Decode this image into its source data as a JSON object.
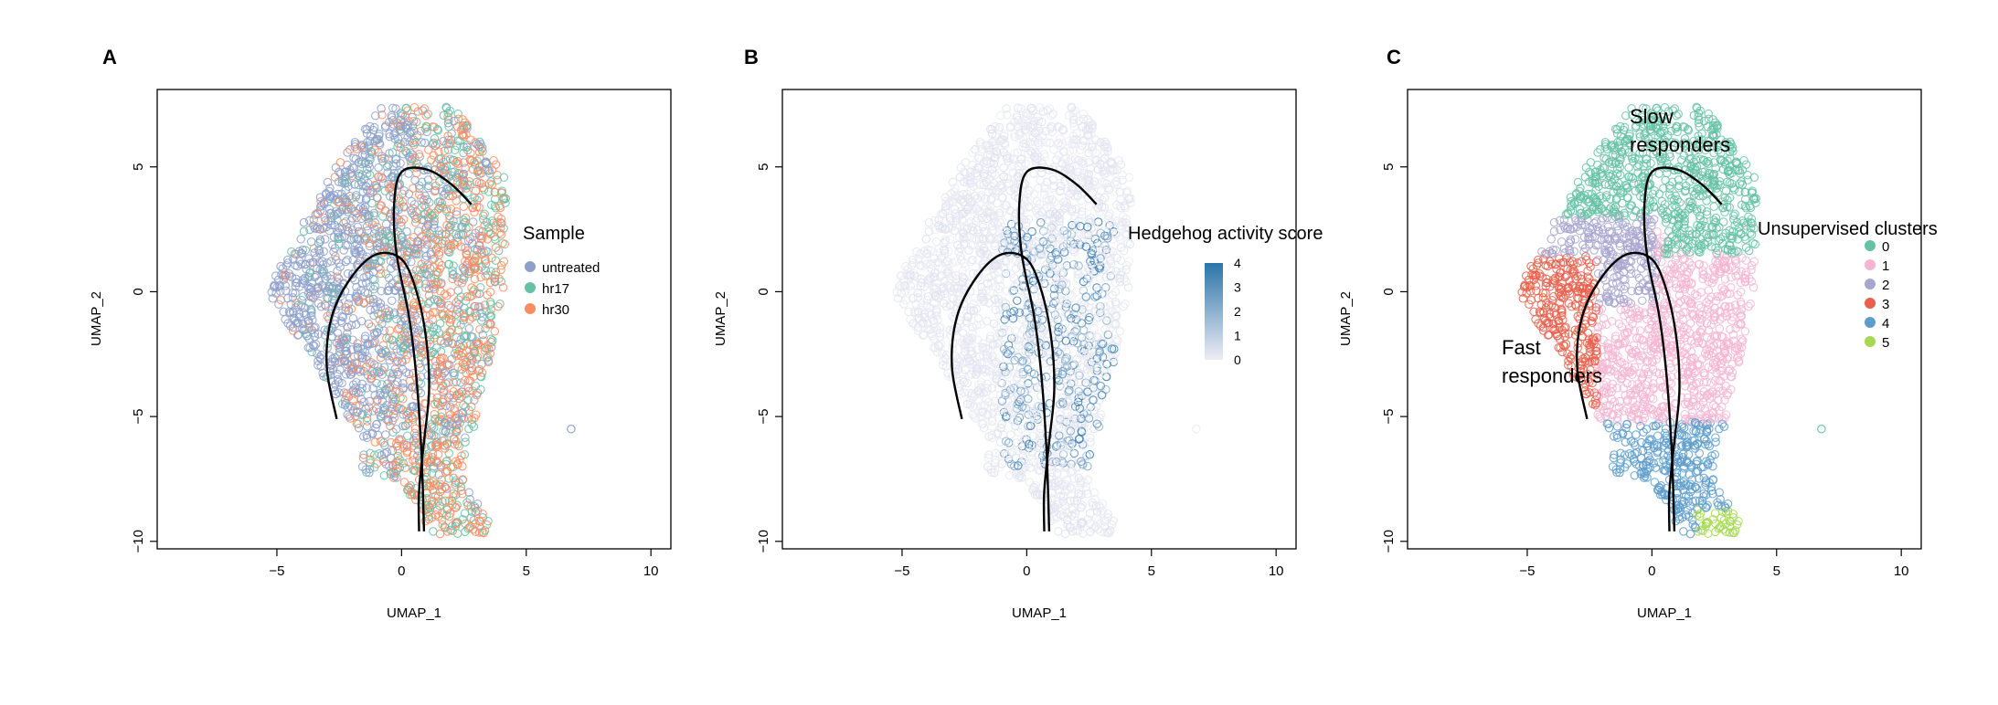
{
  "panels": [
    {
      "letter": "A",
      "legend_title": "Sample"
    },
    {
      "letter": "B",
      "legend_title": "Hedgehog activity score"
    },
    {
      "letter": "C",
      "legend_title": "Unsupervised clusters"
    }
  ],
  "colors": {
    "untreated": "#8DA0CB",
    "hr17": "#66C2A5",
    "hr30": "#FC8D62",
    "score_low": "#EFEDF5",
    "score_high": "#2B75A8",
    "curve": "#000000",
    "cluster_0": "#66C2A5",
    "cluster_1": "#F4B6D2",
    "cluster_2": "#A8A6CF",
    "cluster_3": "#E8604C",
    "cluster_4": "#5E9DCB",
    "cluster_5": "#A6D854"
  },
  "annotations": {
    "slow_line1": "Slow",
    "slow_line2": "responders",
    "fast_line1": "Fast",
    "fast_line2": "responders"
  },
  "chart_data": [
    {
      "type": "scatter",
      "panel": "A",
      "xlabel": "UMAP_1",
      "ylabel": "UMAP_2",
      "xlim": [
        -9.8,
        10.8
      ],
      "ylim": [
        -10.3,
        8.1
      ],
      "xticks": [
        -5,
        0,
        5,
        10
      ],
      "yticks": [
        -10,
        -5,
        0,
        5
      ],
      "legend_placement": "right",
      "series": [
        {
          "name": "untreated",
          "color_key": "untreated"
        },
        {
          "name": "hr17",
          "color_key": "hr17"
        },
        {
          "name": "hr30",
          "color_key": "hr30"
        }
      ],
      "curves": [
        {
          "x": [
            -2.6,
            -3.0,
            -2.8,
            -2.0,
            -1.0,
            0.0,
            0.6,
            1.0,
            1.1,
            0.9,
            0.7,
            0.7
          ],
          "y": [
            -5.1,
            -3.0,
            -1.0,
            0.6,
            1.5,
            1.3,
            0.0,
            -2.0,
            -4.0,
            -6.0,
            -8.0,
            -9.6
          ]
        },
        {
          "x": [
            2.8,
            2.0,
            1.0,
            0.0,
            -0.3,
            -0.2,
            0.3,
            0.6,
            0.8,
            0.9
          ],
          "y": [
            3.5,
            4.3,
            4.9,
            4.8,
            3.5,
            1.5,
            -1.0,
            -3.5,
            -6.5,
            -9.6
          ]
        }
      ],
      "outlier_points": [
        {
          "x": 6.8,
          "y": -5.5,
          "series": "untreated"
        }
      ]
    },
    {
      "type": "scatter",
      "panel": "B",
      "xlabel": "UMAP_1",
      "ylabel": "UMAP_2",
      "xlim": [
        -9.8,
        10.8
      ],
      "ylim": [
        -10.3,
        8.1
      ],
      "xticks": [
        -5,
        0,
        5,
        10
      ],
      "yticks": [
        -10,
        -5,
        0,
        5
      ],
      "legend_placement": "right",
      "colorbar": {
        "min": 0,
        "max": 4,
        "ticks": [
          0,
          1,
          2,
          3,
          4
        ]
      },
      "curves": [
        {
          "x": [
            -2.6,
            -3.0,
            -2.8,
            -2.0,
            -1.0,
            0.0,
            0.6,
            1.0,
            1.1,
            0.9,
            0.7,
            0.7
          ],
          "y": [
            -5.1,
            -3.0,
            -1.0,
            0.6,
            1.5,
            1.3,
            0.0,
            -2.0,
            -4.0,
            -6.0,
            -8.0,
            -9.6
          ]
        },
        {
          "x": [
            2.8,
            2.0,
            1.0,
            0.0,
            -0.3,
            -0.2,
            0.3,
            0.6,
            0.8,
            0.9
          ],
          "y": [
            3.5,
            4.3,
            4.9,
            4.8,
            3.5,
            1.5,
            -1.0,
            -3.5,
            -6.5,
            -9.6
          ]
        }
      ],
      "outlier_points": [
        {
          "x": 6.8,
          "y": -5.5,
          "score": 0
        }
      ]
    },
    {
      "type": "scatter",
      "panel": "C",
      "xlabel": "UMAP_1",
      "ylabel": "UMAP_2",
      "xlim": [
        -9.8,
        10.8
      ],
      "ylim": [
        -10.3,
        8.1
      ],
      "xticks": [
        -5,
        0,
        5,
        10
      ],
      "yticks": [
        -10,
        -5,
        0,
        5
      ],
      "legend_placement": "right",
      "series": [
        {
          "name": "0",
          "color_key": "cluster_0"
        },
        {
          "name": "1",
          "color_key": "cluster_1"
        },
        {
          "name": "2",
          "color_key": "cluster_2"
        },
        {
          "name": "3",
          "color_key": "cluster_3"
        },
        {
          "name": "4",
          "color_key": "cluster_4"
        },
        {
          "name": "5",
          "color_key": "cluster_5"
        }
      ],
      "curves": [
        {
          "x": [
            -2.6,
            -3.0,
            -2.8,
            -2.0,
            -1.0,
            0.0,
            0.6,
            1.0,
            1.1,
            0.9,
            0.7,
            0.7
          ],
          "y": [
            -5.1,
            -3.0,
            -1.0,
            0.6,
            1.5,
            1.3,
            0.0,
            -2.0,
            -4.0,
            -6.0,
            -8.0,
            -9.6
          ]
        },
        {
          "x": [
            2.8,
            2.0,
            1.0,
            0.0,
            -0.3,
            -0.2,
            0.3,
            0.6,
            0.8,
            0.9
          ],
          "y": [
            3.5,
            4.3,
            4.9,
            4.8,
            3.5,
            1.5,
            -1.0,
            -3.5,
            -6.5,
            -9.6
          ]
        }
      ],
      "outlier_points": [
        {
          "x": 6.8,
          "y": -5.5,
          "series": "0"
        }
      ]
    }
  ]
}
